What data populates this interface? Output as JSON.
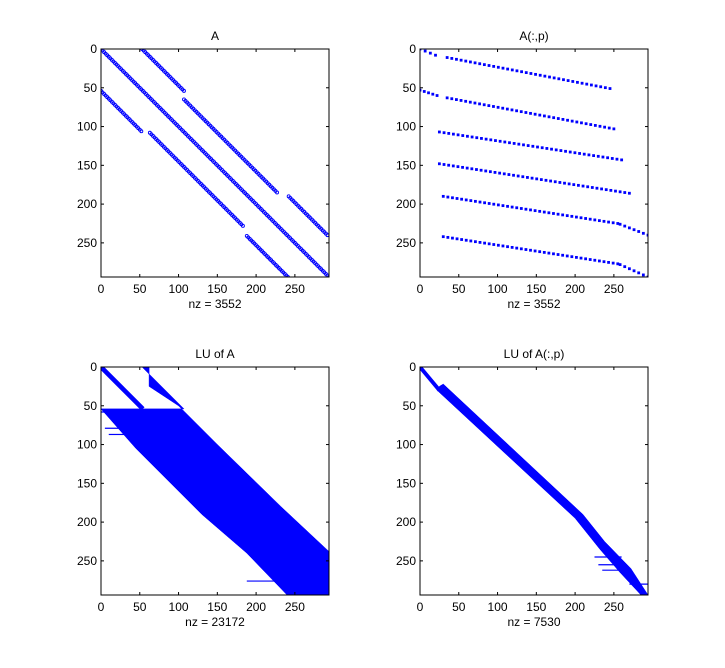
{
  "figure": {
    "background": "#ffffff",
    "marker_color": "#0000ff",
    "axes_color": "#000000"
  },
  "chart_data": [
    {
      "type": "spy",
      "title": "A",
      "xlabel": "nz = 3552",
      "xlim": [
        0,
        294
      ],
      "ylim": [
        294,
        0
      ],
      "xticks": [
        "0",
        "50",
        "100",
        "150",
        "200",
        "250"
      ],
      "yticks": [
        "0",
        "50",
        "100",
        "150",
        "200",
        "250"
      ],
      "segments": [
        {
          "shape": "dots",
          "r0": 0,
          "c0": 0,
          "r1": 294,
          "c1": 294
        },
        {
          "shape": "dots",
          "r0": 0,
          "c0": 53,
          "r1": 54,
          "c1": 107
        },
        {
          "shape": "dots",
          "r0": 65,
          "c0": 107,
          "r1": 185,
          "c1": 227
        },
        {
          "shape": "dots",
          "r0": 190,
          "c0": 242,
          "r1": 240,
          "c1": 292
        },
        {
          "shape": "dots",
          "r0": 54,
          "c0": 0,
          "r1": 106,
          "c1": 52
        },
        {
          "shape": "dots",
          "r0": 108,
          "c0": 63,
          "r1": 228,
          "c1": 183
        },
        {
          "shape": "dots",
          "r0": 241,
          "c0": 188,
          "r1": 294,
          "c1": 241
        }
      ]
    },
    {
      "type": "spy",
      "title": "A(:,p)",
      "xlabel": "nz = 3552",
      "xlim": [
        0,
        294
      ],
      "ylim": [
        294,
        0
      ],
      "xticks": [
        "0",
        "50",
        "100",
        "150",
        "200",
        "250"
      ],
      "yticks": [
        "0",
        "50",
        "100",
        "150",
        "200",
        "250"
      ],
      "segments": [
        {
          "shape": "sparse",
          "r0": 0,
          "c0": 0,
          "r1": 8,
          "c1": 20
        },
        {
          "shape": "sparse",
          "r0": 11,
          "c0": 35,
          "r1": 51,
          "c1": 245
        },
        {
          "shape": "sparse",
          "r0": 53,
          "c0": 0,
          "r1": 60,
          "c1": 22
        },
        {
          "shape": "sparse",
          "r0": 63,
          "c0": 35,
          "r1": 103,
          "c1": 250
        },
        {
          "shape": "sparse",
          "r0": 107,
          "c0": 25,
          "r1": 143,
          "c1": 260
        },
        {
          "shape": "sparse",
          "r0": 148,
          "c0": 25,
          "r1": 186,
          "c1": 270
        },
        {
          "shape": "sparse",
          "r0": 190,
          "c0": 30,
          "r1": 225,
          "c1": 255
        },
        {
          "shape": "sparse",
          "r0": 226,
          "c0": 258,
          "r1": 240,
          "c1": 294
        },
        {
          "shape": "sparse",
          "r0": 242,
          "c0": 30,
          "r1": 277,
          "c1": 255
        },
        {
          "shape": "sparse",
          "r0": 278,
          "c0": 258,
          "r1": 294,
          "c1": 294
        }
      ]
    },
    {
      "type": "spy",
      "title": "LU of A",
      "xlabel": "nz = 23172",
      "xlim": [
        0,
        294
      ],
      "ylim": [
        294,
        0
      ],
      "xticks": [
        "0",
        "50",
        "100",
        "150",
        "200",
        "250"
      ],
      "yticks": [
        "0",
        "50",
        "100",
        "150",
        "200",
        "250"
      ],
      "segments": [
        {
          "shape": "band",
          "r0": 0,
          "c0": 0,
          "r1": 54,
          "c1": 54,
          "w": 6
        },
        {
          "shape": "poly",
          "points": [
            [
              0,
              53
            ],
            [
              54,
              107
            ],
            [
              54,
              0
            ],
            [
              105,
              45
            ],
            [
              190,
              130
            ],
            [
              240,
              188
            ],
            [
              294,
              240
            ],
            [
              294,
              294
            ],
            [
              238,
              294
            ],
            [
              180,
              232
            ],
            [
              100,
              150
            ],
            [
              50,
              100
            ],
            [
              25,
              62
            ],
            [
              0,
              62
            ]
          ]
        },
        {
          "shape": "line",
          "r0": 58,
          "c0": 0,
          "r1": 58,
          "c1": 35
        },
        {
          "shape": "line",
          "r0": 79,
          "c0": 5,
          "r1": 79,
          "c1": 30
        },
        {
          "shape": "line",
          "r0": 87,
          "c0": 10,
          "r1": 87,
          "c1": 30
        },
        {
          "shape": "line",
          "r0": 276,
          "c0": 188,
          "r1": 276,
          "c1": 240
        }
      ]
    },
    {
      "type": "spy",
      "title": "LU of A(:,p)",
      "xlabel": "nz = 7530",
      "xlim": [
        0,
        294
      ],
      "ylim": [
        294,
        0
      ],
      "xticks": [
        "0",
        "50",
        "100",
        "150",
        "200",
        "250"
      ],
      "yticks": [
        "0",
        "50",
        "100",
        "150",
        "200",
        "250"
      ],
      "segments": [
        {
          "shape": "band",
          "r0": 0,
          "c0": 0,
          "r1": 30,
          "c1": 25,
          "w": 5
        },
        {
          "shape": "poly",
          "points": [
            [
              25,
              25
            ],
            [
              22,
              30
            ],
            [
              190,
              210
            ],
            [
              225,
              238
            ],
            [
              260,
              272
            ],
            [
              294,
              294
            ],
            [
              294,
              285
            ],
            [
              265,
              258
            ],
            [
              235,
              232
            ],
            [
              195,
              200
            ],
            [
              30,
              22
            ]
          ]
        },
        {
          "shape": "line",
          "r0": 245,
          "c0": 225,
          "r1": 245,
          "c1": 260
        },
        {
          "shape": "line",
          "r0": 255,
          "c0": 230,
          "r1": 255,
          "c1": 265
        },
        {
          "shape": "line",
          "r0": 262,
          "c0": 235,
          "r1": 262,
          "c1": 270
        },
        {
          "shape": "line",
          "r0": 280,
          "c0": 270,
          "r1": 280,
          "c1": 294
        }
      ]
    }
  ]
}
